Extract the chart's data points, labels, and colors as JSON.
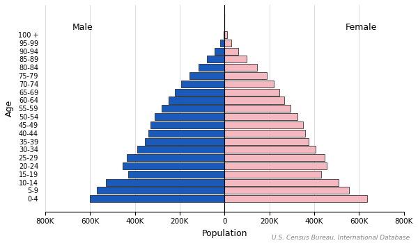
{
  "age_groups": [
    "0-4",
    "5-9",
    "10-14",
    "15-19",
    "20-24",
    "25-29",
    "30-34",
    "35-39",
    "40-44",
    "45-49",
    "50-54",
    "55-59",
    "60-64",
    "65-69",
    "70-74",
    "75-79",
    "80-84",
    "85-89",
    "90-94",
    "95-99",
    "100 +"
  ],
  "male": [
    600,
    570,
    530,
    430,
    455,
    435,
    390,
    355,
    340,
    330,
    310,
    280,
    250,
    220,
    195,
    155,
    115,
    80,
    45,
    20,
    5
  ],
  "female": [
    635,
    555,
    510,
    430,
    455,
    445,
    405,
    375,
    360,
    350,
    325,
    295,
    265,
    245,
    220,
    190,
    145,
    100,
    60,
    30,
    10
  ],
  "male_color": "#1a5aba",
  "female_color": "#f4b8c1",
  "male_edge_color": "#111111",
  "female_edge_color": "#111111",
  "xlabel": "Population",
  "ylabel": "Age",
  "male_label": "Male",
  "female_label": "Female",
  "xlim": 800,
  "tick_labels": [
    "800K",
    "600K",
    "400K",
    "200K",
    "0",
    "200K",
    "400K",
    "600K",
    "800K"
  ],
  "source_text": "U.S. Census Bureau, International Database",
  "bar_height": 0.85
}
